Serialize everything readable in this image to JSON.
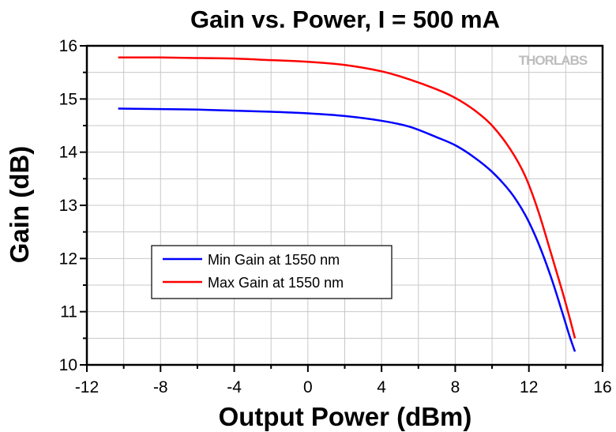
{
  "chart_data": {
    "type": "line",
    "title": "Gain vs. Power, I = 500 mA",
    "xlabel": "Output Power (dBm)",
    "ylabel": "Gain (dB)",
    "xlim": [
      -12,
      16
    ],
    "ylim": [
      10,
      16
    ],
    "xticks": [
      "-12",
      "-8",
      "-4",
      "0",
      "4",
      "8",
      "12",
      "16"
    ],
    "yticks": [
      "10",
      "11",
      "12",
      "13",
      "14",
      "15",
      "16"
    ],
    "grid": true,
    "legend_position": "bottom-left",
    "watermark": "THORLABS",
    "series": [
      {
        "name": "Min Gain at 1550 nm",
        "color": "#0000ff",
        "x": [
          -10.3,
          -8,
          -6,
          -4,
          -2,
          0,
          2,
          4,
          5.5,
          7,
          8,
          9,
          10,
          11,
          11.8,
          12.5,
          13.2,
          13.8,
          14.2,
          14.5
        ],
        "y": [
          14.82,
          14.81,
          14.8,
          14.78,
          14.76,
          14.73,
          14.68,
          14.59,
          14.48,
          14.28,
          14.13,
          13.91,
          13.63,
          13.25,
          12.82,
          12.3,
          11.65,
          11.0,
          10.55,
          10.25
        ]
      },
      {
        "name": "Max Gain at 1550 nm",
        "color": "#ff0000",
        "x": [
          -10.3,
          -8,
          -6,
          -4,
          -2,
          0,
          2,
          4,
          5.5,
          7,
          8,
          9,
          10,
          11,
          11.8,
          12.5,
          13.2,
          13.8,
          14.2,
          14.5
        ],
        "y": [
          15.78,
          15.78,
          15.77,
          15.76,
          15.73,
          15.7,
          15.64,
          15.52,
          15.37,
          15.18,
          15.02,
          14.8,
          14.5,
          14.05,
          13.55,
          12.9,
          12.1,
          11.4,
          10.9,
          10.5
        ]
      }
    ]
  }
}
